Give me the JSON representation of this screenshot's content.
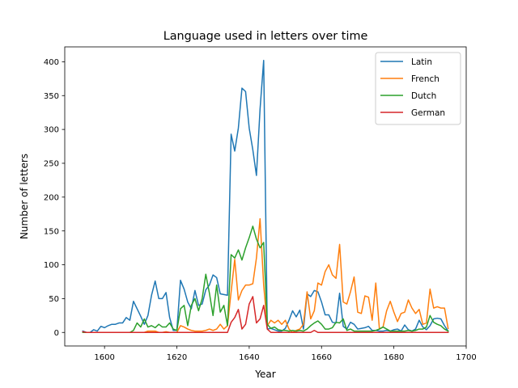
{
  "chart_data": {
    "type": "line",
    "title": "Language used in letters over time",
    "xlabel": "Year",
    "ylabel": "Number of letters",
    "xlim": [
      1589,
      1700
    ],
    "ylim": [
      -20,
      422
    ],
    "xticks": [
      1600,
      1620,
      1640,
      1660,
      1680,
      1700
    ],
    "yticks": [
      0,
      50,
      100,
      150,
      200,
      250,
      300,
      350,
      400
    ],
    "grid": false,
    "legend_position": "top-right",
    "x": [
      1594,
      1595,
      1596,
      1597,
      1598,
      1599,
      1600,
      1601,
      1602,
      1603,
      1604,
      1605,
      1606,
      1607,
      1608,
      1609,
      1610,
      1611,
      1612,
      1613,
      1614,
      1615,
      1616,
      1617,
      1618,
      1619,
      1620,
      1621,
      1622,
      1623,
      1624,
      1625,
      1626,
      1627,
      1628,
      1629,
      1630,
      1631,
      1632,
      1633,
      1634,
      1635,
      1636,
      1637,
      1638,
      1639,
      1640,
      1641,
      1642,
      1643,
      1644,
      1645,
      1646,
      1647,
      1648,
      1649,
      1650,
      1651,
      1652,
      1653,
      1654,
      1655,
      1656,
      1657,
      1658,
      1659,
      1660,
      1661,
      1662,
      1663,
      1664,
      1665,
      1666,
      1667,
      1668,
      1669,
      1670,
      1671,
      1672,
      1673,
      1674,
      1675,
      1676,
      1677,
      1678,
      1679,
      1680,
      1681,
      1682,
      1683,
      1684,
      1685,
      1686,
      1687,
      1688,
      1689,
      1690,
      1691,
      1692,
      1693,
      1694,
      1695
    ],
    "series": [
      {
        "name": "Latin",
        "color": "#1f77b4",
        "values": [
          2,
          0,
          0,
          4,
          2,
          9,
          7,
          10,
          12,
          12,
          14,
          14,
          22,
          18,
          46,
          35,
          24,
          12,
          25,
          55,
          76,
          50,
          50,
          59,
          22,
          3,
          3,
          77,
          64,
          45,
          35,
          62,
          40,
          42,
          63,
          70,
          85,
          81,
          57,
          56,
          55,
          293,
          268,
          302,
          361,
          356,
          302,
          270,
          232,
          330,
          402,
          5,
          6,
          4,
          2,
          2,
          6,
          18,
          32,
          23,
          33,
          5,
          57,
          53,
          62,
          60,
          45,
          26,
          26,
          15,
          14,
          58,
          9,
          5,
          15,
          12,
          5,
          6,
          7,
          9,
          3,
          3,
          2,
          2,
          3,
          2,
          4,
          5,
          2,
          11,
          4,
          2,
          5,
          18,
          8,
          4,
          10,
          20,
          21,
          20,
          10,
          2
        ]
      },
      {
        "name": "French",
        "color": "#ff7f0e",
        "values": [
          0,
          0,
          0,
          0,
          0,
          0,
          0,
          0,
          0,
          0,
          0,
          0,
          0,
          0,
          0,
          0,
          0,
          0,
          2,
          2,
          2,
          0,
          0,
          1,
          0,
          0,
          0,
          10,
          8,
          5,
          3,
          2,
          2,
          2,
          3,
          5,
          3,
          5,
          12,
          5,
          10,
          60,
          108,
          48,
          62,
          70,
          70,
          72,
          110,
          168,
          70,
          10,
          18,
          14,
          18,
          12,
          18,
          5,
          0,
          3,
          5,
          12,
          60,
          20,
          32,
          73,
          70,
          90,
          100,
          85,
          80,
          130,
          45,
          42,
          60,
          82,
          30,
          28,
          54,
          52,
          18,
          73,
          5,
          8,
          32,
          46,
          30,
          16,
          28,
          30,
          48,
          36,
          28,
          34,
          12,
          14,
          64,
          36,
          38,
          36,
          36,
          6
        ]
      },
      {
        "name": "Dutch",
        "color": "#2ca02c",
        "values": [
          0,
          0,
          0,
          0,
          0,
          0,
          0,
          0,
          0,
          0,
          0,
          0,
          0,
          0,
          3,
          14,
          8,
          20,
          8,
          10,
          7,
          12,
          8,
          8,
          14,
          5,
          3,
          35,
          40,
          10,
          40,
          50,
          32,
          50,
          86,
          58,
          25,
          70,
          30,
          40,
          10,
          115,
          110,
          122,
          107,
          125,
          140,
          157,
          138,
          125,
          133,
          12,
          6,
          8,
          4,
          3,
          3,
          2,
          3,
          2,
          3,
          2,
          5,
          10,
          14,
          17,
          12,
          5,
          5,
          7,
          15,
          14,
          20,
          3,
          5,
          2,
          2,
          2,
          2,
          2,
          2,
          3,
          5,
          8,
          5,
          2,
          2,
          2,
          2,
          2,
          3,
          2,
          3,
          5,
          5,
          8,
          25,
          15,
          12,
          10,
          5,
          2
        ]
      },
      {
        "name": "German",
        "color": "#d62728",
        "values": [
          1,
          0,
          0,
          0,
          0,
          0,
          0,
          0,
          0,
          0,
          0,
          0,
          0,
          0,
          0,
          0,
          0,
          0,
          0,
          0,
          0,
          0,
          0,
          0,
          0,
          0,
          0,
          0,
          0,
          0,
          0,
          0,
          0,
          0,
          0,
          0,
          0,
          0,
          0,
          0,
          0,
          15,
          22,
          34,
          5,
          12,
          42,
          53,
          14,
          20,
          40,
          5,
          0,
          0,
          0,
          0,
          0,
          0,
          0,
          0,
          0,
          0,
          0,
          0,
          3,
          0,
          0,
          0,
          0,
          0,
          0,
          0,
          0,
          0,
          0,
          0,
          0,
          0,
          0,
          0,
          0,
          0,
          0,
          0,
          0,
          0,
          0,
          0,
          0,
          0,
          0,
          0,
          0,
          0,
          0,
          0,
          0,
          0,
          0,
          0,
          0,
          0
        ]
      }
    ]
  }
}
